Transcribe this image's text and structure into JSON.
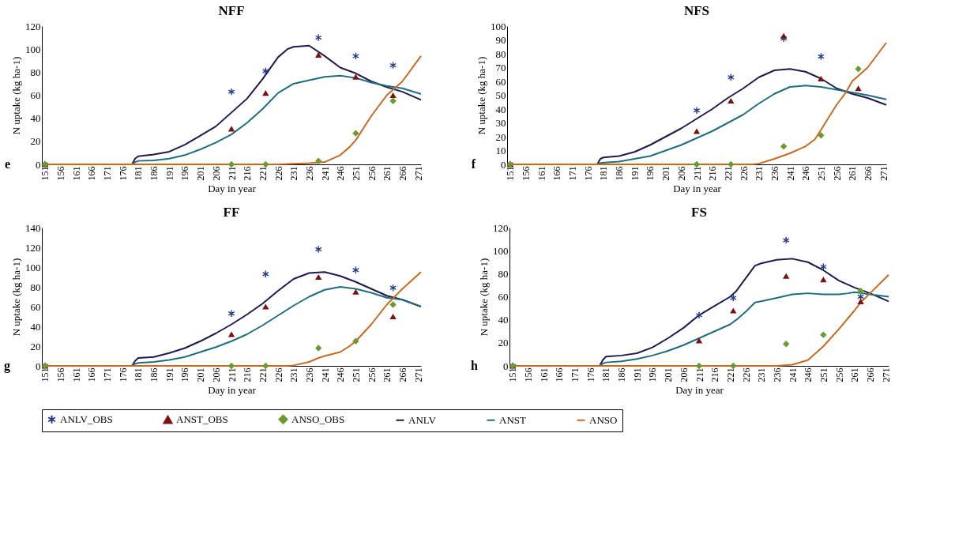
{
  "chart_data": [
    {
      "type": "line",
      "title": "NFF",
      "xlabel": "Day in year",
      "ylabel": "N uptake (kg ha-1)",
      "annotations": [
        "e"
      ],
      "xlim": [
        150,
        272
      ],
      "xticks": [
        151,
        156,
        161,
        166,
        171,
        176,
        181,
        186,
        191,
        196,
        201,
        206,
        211,
        216,
        221,
        226,
        231,
        236,
        241,
        246,
        251,
        256,
        261,
        266,
        271
      ],
      "ylim": [
        0,
        120
      ],
      "yticks": [
        0,
        20,
        40,
        60,
        80,
        100,
        120
      ],
      "grid": false,
      "legend": "bottom",
      "series": [
        {
          "name": "ANLV_OBS",
          "type": "scatter",
          "marker": "cross",
          "color": "#1f3a8a",
          "x": [
            151,
            211,
            222,
            239,
            251,
            263
          ],
          "values": [
            0,
            63,
            81,
            110,
            94,
            86
          ]
        },
        {
          "name": "ANST_OBS",
          "type": "scatter",
          "marker": "triangle",
          "color": "#7b1111",
          "x": [
            151,
            211,
            222,
            239,
            251,
            263
          ],
          "values": [
            0,
            31,
            62,
            95,
            76,
            60
          ]
        },
        {
          "name": "ANSO_OBS",
          "type": "scatter",
          "marker": "diamond",
          "color": "#6b9a2e",
          "x": [
            151,
            211,
            222,
            239,
            251,
            263
          ],
          "values": [
            0,
            0,
            0,
            3,
            27,
            55
          ]
        },
        {
          "name": "ANLV",
          "type": "line",
          "color": "#1f1a4d",
          "x": [
            151,
            179,
            180,
            181,
            186,
            191,
            196,
            201,
            206,
            211,
            216,
            221,
            226,
            229,
            231,
            236,
            241,
            246,
            251,
            256,
            261,
            266,
            272
          ],
          "values": [
            0,
            0,
            5,
            7,
            8.5,
            11,
            17,
            25,
            33,
            45,
            57,
            74,
            93,
            100,
            102,
            103,
            94,
            84,
            79,
            72,
            67,
            63,
            56
          ]
        },
        {
          "name": "ANST",
          "type": "line",
          "color": "#1f6e7e",
          "x": [
            151,
            179,
            180,
            181,
            186,
            191,
            196,
            201,
            206,
            211,
            216,
            221,
            226,
            231,
            236,
            241,
            246,
            251,
            256,
            261,
            266,
            272
          ],
          "values": [
            0,
            0,
            2,
            3,
            3.5,
            5,
            8,
            13,
            19,
            26,
            36,
            48,
            62,
            70,
            73,
            76,
            77,
            75,
            71,
            68,
            66,
            61
          ]
        },
        {
          "name": "ANSO",
          "type": "line",
          "color": "#c8691f",
          "x": [
            151,
            226,
            231,
            236,
            241,
            246,
            249,
            251,
            256,
            261,
            266,
            272
          ],
          "values": [
            0,
            0,
            0.5,
            1,
            2,
            8,
            15,
            21,
            42,
            60,
            72,
            94
          ]
        }
      ]
    },
    {
      "type": "line",
      "title": "NFS",
      "xlabel": "Day in year",
      "ylabel": "N uptake (kg ha-1)",
      "annotations": [
        "f"
      ],
      "xlim": [
        150,
        272
      ],
      "xticks": [
        151,
        156,
        161,
        166,
        171,
        176,
        181,
        186,
        191,
        196,
        201,
        206,
        211,
        216,
        221,
        226,
        231,
        236,
        241,
        246,
        251,
        256,
        261,
        266,
        271
      ],
      "ylim": [
        0,
        100
      ],
      "yticks": [
        0,
        10,
        20,
        30,
        40,
        50,
        60,
        70,
        80,
        90,
        100
      ],
      "grid": false,
      "legend": "bottom",
      "series": [
        {
          "name": "ANLV_OBS",
          "type": "scatter",
          "marker": "cross",
          "color": "#1f3a8a",
          "x": [
            151,
            211,
            222,
            239,
            251
          ],
          "values": [
            0,
            39,
            63,
            91,
            78
          ]
        },
        {
          "name": "ANST_OBS",
          "type": "scatter",
          "marker": "triangle",
          "color": "#7b1111",
          "x": [
            151,
            211,
            222,
            239,
            251,
            263
          ],
          "values": [
            0,
            24,
            46,
            93,
            62,
            55
          ]
        },
        {
          "name": "ANSO_OBS",
          "type": "scatter",
          "marker": "diamond",
          "color": "#6b9a2e",
          "x": [
            151,
            211,
            222,
            239,
            251,
            263
          ],
          "values": [
            0,
            0,
            0,
            13,
            21,
            69
          ]
        },
        {
          "name": "ANLV",
          "type": "line",
          "color": "#1f1a4d",
          "x": [
            151,
            179,
            180,
            181,
            186,
            191,
            196,
            201,
            206,
            211,
            216,
            221,
            226,
            231,
            236,
            241,
            246,
            251,
            256,
            261,
            266,
            272
          ],
          "values": [
            0,
            0,
            4,
            5,
            6,
            9,
            14,
            20,
            26,
            33,
            40,
            48,
            55,
            63,
            68,
            69,
            67,
            62,
            55,
            51,
            48,
            43
          ]
        },
        {
          "name": "ANST",
          "type": "line",
          "color": "#1f6e7e",
          "x": [
            151,
            179,
            180,
            186,
            191,
            196,
            201,
            206,
            211,
            216,
            221,
            226,
            231,
            236,
            241,
            246,
            251,
            256,
            261,
            266,
            272
          ],
          "values": [
            0,
            0,
            1,
            2,
            4,
            6,
            10,
            14,
            19,
            24,
            30,
            36,
            44,
            51,
            56,
            57,
            56,
            54,
            52,
            50,
            47
          ]
        },
        {
          "name": "ANSO",
          "type": "line",
          "color": "#c8691f",
          "x": [
            151,
            229,
            231,
            236,
            241,
            246,
            249,
            251,
            256,
            259,
            261,
            266,
            272
          ],
          "values": [
            0,
            0,
            0.5,
            4,
            8,
            13,
            18,
            25,
            43,
            52,
            60,
            70,
            88
          ]
        }
      ]
    },
    {
      "type": "line",
      "title": "FF",
      "xlabel": "Day in year",
      "ylabel": "N uptake (kg ha-1)",
      "annotations": [
        "g"
      ],
      "xlim": [
        150,
        272
      ],
      "xticks": [
        151,
        156,
        161,
        166,
        171,
        176,
        181,
        186,
        191,
        196,
        201,
        206,
        211,
        216,
        221,
        226,
        231,
        236,
        241,
        246,
        251,
        256,
        261,
        266,
        271
      ],
      "ylim": [
        0,
        140
      ],
      "yticks": [
        0,
        20,
        40,
        60,
        80,
        100,
        120,
        140
      ],
      "grid": false,
      "legend": "bottom",
      "series": [
        {
          "name": "ANLV_OBS",
          "type": "scatter",
          "marker": "cross",
          "color": "#1f3a8a",
          "x": [
            151,
            211,
            222,
            239,
            251,
            263
          ],
          "values": [
            0,
            53,
            93,
            118,
            97,
            79
          ]
        },
        {
          "name": "ANST_OBS",
          "type": "scatter",
          "marker": "triangle",
          "color": "#7b1111",
          "x": [
            151,
            211,
            222,
            239,
            251,
            263
          ],
          "values": [
            0,
            32,
            60,
            90,
            75,
            50
          ]
        },
        {
          "name": "ANSO_OBS",
          "type": "scatter",
          "marker": "diamond",
          "color": "#6b9a2e",
          "x": [
            151,
            211,
            222,
            239,
            251,
            263
          ],
          "values": [
            0,
            0,
            0,
            18,
            25,
            62
          ]
        },
        {
          "name": "ANLV",
          "type": "line",
          "color": "#1f1a4d",
          "x": [
            151,
            179,
            180,
            181,
            186,
            191,
            196,
            201,
            206,
            211,
            216,
            221,
            226,
            231,
            236,
            241,
            246,
            251,
            256,
            261,
            266,
            272
          ],
          "values": [
            0,
            0,
            5,
            8,
            9,
            13,
            18,
            25,
            33,
            42,
            52,
            63,
            76,
            88,
            94,
            95,
            91,
            85,
            78,
            71,
            67,
            60
          ]
        },
        {
          "name": "ANST",
          "type": "line",
          "color": "#1f6e7e",
          "x": [
            151,
            179,
            180,
            181,
            186,
            191,
            196,
            201,
            206,
            211,
            216,
            221,
            226,
            231,
            236,
            241,
            246,
            251,
            256,
            261,
            266,
            272
          ],
          "values": [
            0,
            0,
            2,
            3,
            4,
            6,
            9,
            14,
            19,
            25,
            32,
            41,
            51,
            61,
            70,
            77,
            80,
            78,
            74,
            69,
            67,
            60
          ]
        },
        {
          "name": "ANSO",
          "type": "line",
          "color": "#c8691f",
          "x": [
            151,
            229,
            231,
            236,
            239,
            241,
            246,
            249,
            251,
            256,
            261,
            266,
            272
          ],
          "values": [
            0,
            0,
            0.5,
            4,
            8,
            10,
            14,
            20,
            25,
            42,
            62,
            78,
            95
          ]
        }
      ]
    },
    {
      "type": "line",
      "title": "FS",
      "xlabel": "Day in year",
      "ylabel": "N uptake (kg ha-1)",
      "annotations": [
        "h"
      ],
      "xlim": [
        150,
        272
      ],
      "xticks": [
        151,
        156,
        161,
        166,
        171,
        176,
        181,
        186,
        191,
        196,
        201,
        206,
        211,
        216,
        221,
        226,
        231,
        236,
        241,
        246,
        251,
        256,
        261,
        266,
        271
      ],
      "ylim": [
        0,
        120
      ],
      "yticks": [
        0,
        20,
        40,
        60,
        80,
        100,
        120
      ],
      "grid": false,
      "legend": "bottom",
      "series": [
        {
          "name": "ANLV_OBS",
          "type": "scatter",
          "marker": "cross",
          "color": "#1f3a8a",
          "x": [
            151,
            211,
            222,
            239,
            251,
            263
          ],
          "values": [
            0,
            44,
            59,
            109,
            86,
            60
          ]
        },
        {
          "name": "ANST_OBS",
          "type": "scatter",
          "marker": "triangle",
          "color": "#7b1111",
          "x": [
            151,
            211,
            222,
            239,
            251,
            263
          ],
          "values": [
            0,
            22,
            48,
            78,
            75,
            56
          ]
        },
        {
          "name": "ANSO_OBS",
          "type": "scatter",
          "marker": "diamond",
          "color": "#6b9a2e",
          "x": [
            151,
            211,
            222,
            239,
            251,
            263
          ],
          "values": [
            0,
            0,
            0,
            19,
            27,
            65
          ]
        },
        {
          "name": "ANLV",
          "type": "line",
          "color": "#1f1a4d",
          "x": [
            151,
            179,
            180,
            181,
            186,
            191,
            196,
            201,
            206,
            211,
            216,
            221,
            223,
            226,
            229,
            231,
            236,
            241,
            246,
            251,
            256,
            261,
            266,
            272
          ],
          "values": [
            0,
            0,
            5,
            8,
            9,
            11,
            16,
            24,
            33,
            44,
            52,
            60,
            65,
            76,
            87,
            89,
            92,
            93,
            90,
            83,
            74,
            68,
            63,
            56
          ]
        },
        {
          "name": "ANST",
          "type": "line",
          "color": "#1f6e7e",
          "x": [
            151,
            179,
            180,
            181,
            186,
            191,
            196,
            201,
            206,
            211,
            216,
            221,
            223,
            226,
            229,
            231,
            236,
            241,
            246,
            251,
            256,
            259,
            261,
            266,
            272
          ],
          "values": [
            0,
            0,
            2,
            3,
            4,
            6,
            9,
            13,
            18,
            24,
            30,
            36,
            40,
            47,
            55,
            56,
            59,
            62,
            63,
            62,
            62,
            63,
            64,
            62,
            60
          ]
        },
        {
          "name": "ANSO",
          "type": "line",
          "color": "#c8691f",
          "x": [
            151,
            236,
            241,
            246,
            251,
            256,
            261,
            263,
            266,
            272
          ],
          "values": [
            0,
            0,
            1,
            5,
            17,
            32,
            48,
            55,
            63,
            79
          ]
        }
      ]
    }
  ]
}
